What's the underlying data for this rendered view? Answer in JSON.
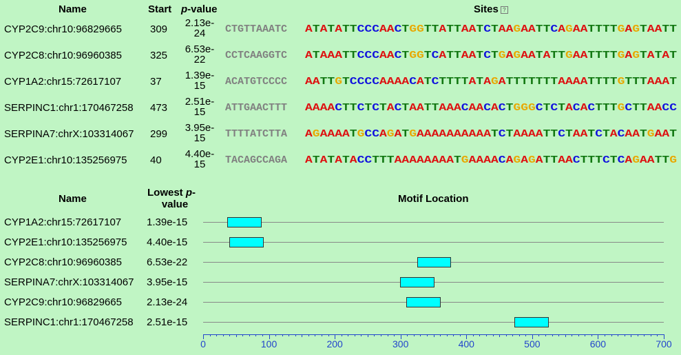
{
  "sites_table": {
    "headers": {
      "name": "Name",
      "start": "Start",
      "pvalue": "p",
      "pvalue_suffix": "-value",
      "sites": "Sites",
      "help": "?"
    },
    "rows": [
      {
        "name": "CYP2C9:chr10:96829665",
        "start": "309",
        "p1": "2.13e-",
        "p2": "24",
        "flank": "CTGTTAAATC",
        "site": "ATATATTCCCAACTGGTTATTAATCTAAGAATTCAGAATTTTGAGTAATT"
      },
      {
        "name": "CYP2C8:chr10:96960385",
        "start": "325",
        "p1": "6.53e-",
        "p2": "22",
        "flank": "CCTCAAGGTC",
        "site": "ATAAATTCCCAACTGGTCATTAATCTGAGAATATTGAATTTTGAGTATAT"
      },
      {
        "name": "CYP1A2:chr15:72617107",
        "start": "37",
        "p1": "1.39e-",
        "p2": "15",
        "flank": "ACATGTCCCC",
        "site": "AATTGTCCCCAAAACATCTTTTATAGATTTTTTTAAAATTTTGTTTAAAT"
      },
      {
        "name": "SERPINC1:chr1:170467258",
        "start": "473",
        "p1": "2.51e-",
        "p2": "15",
        "flank": "ATTGAACTTT",
        "site": "AAAACTTCTCTACTAATTAAACAACACTGGGCTCTACACTTTGCTTAACC"
      },
      {
        "name": "SERPINA7:chrX:103314067",
        "start": "299",
        "p1": "3.95e-",
        "p2": "15",
        "flank": "TTTTATCTTA",
        "site": "AGAAAATGCCAGATGAAAAAAAAAATCTAAAATTCTAATCTACAATGAAT"
      },
      {
        "name": "CYP2E1:chr10:135256975",
        "start": "40",
        "p1": "4.40e-",
        "p2": "15",
        "flank": "TACAGCCAGA",
        "site": "ATATATACCTTTAAAAAAAATGAAAACAGAGATTAACTTTCTCAGAATTG"
      }
    ]
  },
  "location_table": {
    "headers": {
      "name": "Name",
      "lowest_1": "Lowest ",
      "lowest_p": "p",
      "lowest_dash": "-",
      "lowest_2": "value",
      "motif": "Motif Location"
    },
    "rows": [
      {
        "name": "CYP1A2:chr15:72617107",
        "pvalue": "1.39e-15",
        "start": 37,
        "end": 87
      },
      {
        "name": "CYP2E1:chr10:135256975",
        "pvalue": "4.40e-15",
        "start": 40,
        "end": 90
      },
      {
        "name": "CYP2C8:chr10:96960385",
        "pvalue": "6.53e-22",
        "start": 325,
        "end": 375
      },
      {
        "name": "SERPINA7:chrX:103314067",
        "pvalue": "3.95e-15",
        "start": 299,
        "end": 349
      },
      {
        "name": "CYP2C9:chr10:96829665",
        "pvalue": "2.13e-24",
        "start": 309,
        "end": 359
      },
      {
        "name": "SERPINC1:chr1:170467258",
        "pvalue": "2.51e-15",
        "start": 473,
        "end": 523
      }
    ],
    "axis": {
      "min": 0,
      "max": 700,
      "labels": [
        "0",
        "100",
        "200",
        "300",
        "400",
        "500",
        "600",
        "700"
      ]
    }
  },
  "colors": {
    "background": "#c0f5c4",
    "box": "#00ffff",
    "axis": "#2244cc",
    "A": "#dd1111",
    "C": "#1111dd",
    "G": "#e8a800",
    "T": "#117711"
  }
}
